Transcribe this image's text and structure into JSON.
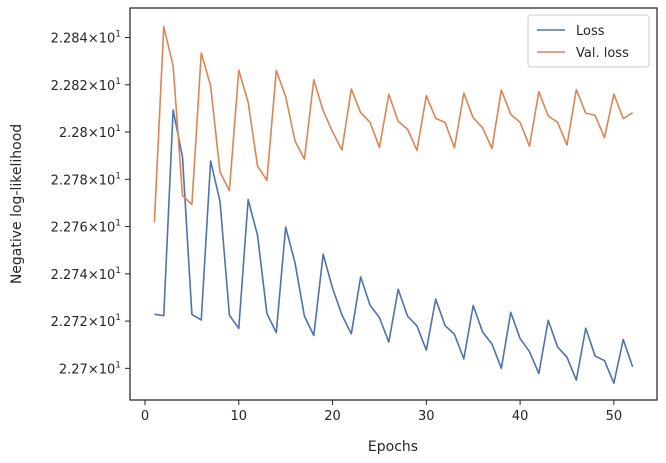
{
  "chart_data": {
    "type": "line",
    "xlabel": "Epochs",
    "ylabel": "Negative log-likelihood",
    "xlim": [
      -1.6,
      54.6
    ],
    "ylim": [
      22.6866,
      22.8525
    ],
    "xticks": [
      0,
      10,
      20,
      30,
      40,
      50
    ],
    "yticks": [
      {
        "value": 22.7,
        "mant": "2.27",
        "exp": "1"
      },
      {
        "value": 22.72,
        "mant": "2.272",
        "exp": "1"
      },
      {
        "value": 22.74,
        "mant": "2.274",
        "exp": "1"
      },
      {
        "value": 22.76,
        "mant": "2.276",
        "exp": "1"
      },
      {
        "value": 22.78,
        "mant": "2.278",
        "exp": "1"
      },
      {
        "value": 22.8,
        "mant": "2.28",
        "exp": "1"
      },
      {
        "value": 22.82,
        "mant": "2.282",
        "exp": "1"
      },
      {
        "value": 22.84,
        "mant": "2.284",
        "exp": "1"
      }
    ],
    "grid": false,
    "legend_position": "top-right",
    "series": [
      {
        "name": "Loss",
        "color": "#4c72b0",
        "x": [
          1,
          2,
          3,
          4,
          5,
          6,
          7,
          8,
          9,
          10,
          11,
          12,
          13,
          14,
          15,
          16,
          17,
          18,
          19,
          20,
          21,
          22,
          23,
          24,
          25,
          26,
          27,
          28,
          29,
          30,
          31,
          32,
          33,
          34,
          35,
          36,
          37,
          38,
          39,
          40,
          41,
          42,
          43,
          44,
          45,
          46,
          47,
          48,
          49,
          50,
          51,
          52
        ],
        "y": [
          22.7229,
          22.7223,
          22.8093,
          22.7894,
          22.7228,
          22.7205,
          22.7878,
          22.7706,
          22.7225,
          22.7169,
          22.7714,
          22.7563,
          22.7232,
          22.7151,
          22.7598,
          22.7446,
          22.7221,
          22.7139,
          22.7483,
          22.7339,
          22.7226,
          22.7146,
          22.7387,
          22.7267,
          22.7215,
          22.7111,
          22.7334,
          22.7221,
          22.718,
          22.7077,
          22.7293,
          22.7181,
          22.7144,
          22.704,
          22.7266,
          22.7154,
          22.7103,
          22.7,
          22.7237,
          22.7126,
          22.7071,
          22.6978,
          22.7203,
          22.709,
          22.7047,
          22.695,
          22.717,
          22.7052,
          22.7033,
          22.6937,
          22.7122,
          22.7006
        ]
      },
      {
        "name": "Val. loss",
        "color": "#dd8452",
        "x": [
          1,
          2,
          3,
          4,
          5,
          6,
          7,
          8,
          9,
          10,
          11,
          12,
          13,
          14,
          15,
          16,
          17,
          18,
          19,
          20,
          21,
          22,
          23,
          24,
          25,
          26,
          27,
          28,
          29,
          30,
          31,
          32,
          33,
          34,
          35,
          36,
          37,
          38,
          39,
          40,
          41,
          42,
          43,
          44,
          45,
          46,
          47,
          48,
          49,
          50,
          51,
          52
        ],
        "y": [
          22.7618,
          22.8446,
          22.828,
          22.7731,
          22.7693,
          22.8335,
          22.8195,
          22.7831,
          22.7752,
          22.8262,
          22.8126,
          22.7856,
          22.7796,
          22.8261,
          22.815,
          22.7962,
          22.7885,
          22.8221,
          22.809,
          22.8001,
          22.7924,
          22.8182,
          22.8082,
          22.8041,
          22.7935,
          22.816,
          22.8045,
          22.8012,
          22.7922,
          22.8154,
          22.8058,
          22.8041,
          22.7933,
          22.8165,
          22.806,
          22.8018,
          22.793,
          22.8178,
          22.8075,
          22.8041,
          22.794,
          22.8171,
          22.8068,
          22.8041,
          22.7945,
          22.818,
          22.808,
          22.8071,
          22.7976,
          22.8161,
          22.8057,
          22.8082
        ]
      }
    ]
  }
}
